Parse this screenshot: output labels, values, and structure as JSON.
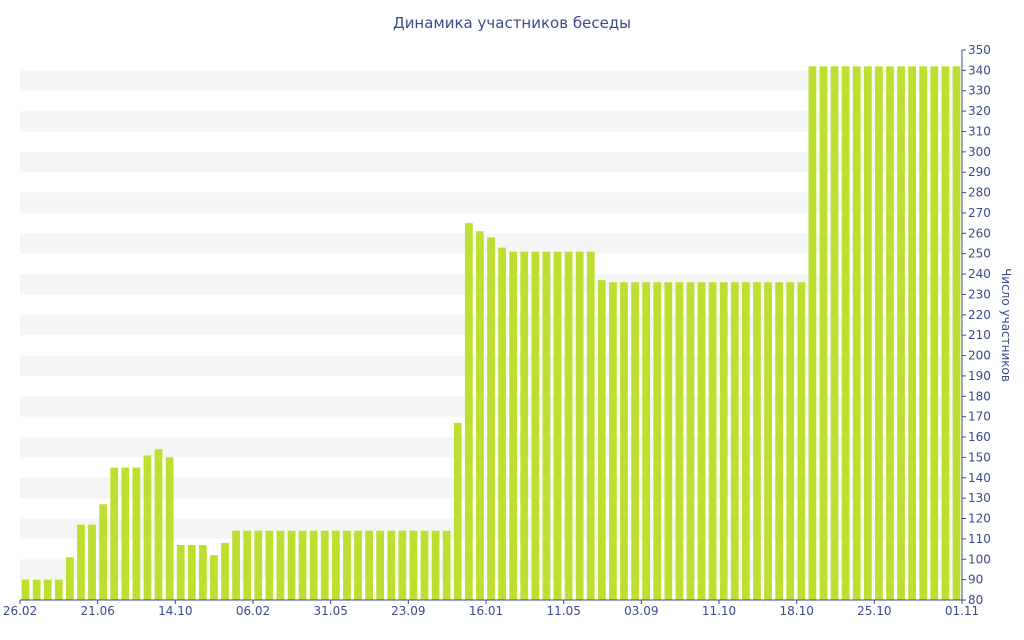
{
  "chart_data": {
    "type": "bar",
    "title": "Динамика участников беседы",
    "xlabel": "",
    "ylabel": "Число участников",
    "ylim": [
      80,
      350
    ],
    "y_ticks": [
      80,
      90,
      100,
      110,
      120,
      130,
      140,
      150,
      160,
      170,
      180,
      190,
      200,
      210,
      220,
      230,
      240,
      250,
      260,
      270,
      280,
      290,
      300,
      310,
      320,
      330,
      340,
      350
    ],
    "y_axis_position": "right",
    "grid": "alternating horizontal bands",
    "bar_color": "#bde030",
    "band_color": "#f5f5f5",
    "text_color": "#3b4a8c",
    "x_tick_labels": [
      "26.02",
      "21.06",
      "14.10",
      "06.02",
      "31.05",
      "23.09",
      "16.01",
      "11.05",
      "03.09",
      "11.10",
      "18.10",
      "25.10",
      "01.11"
    ],
    "values": [
      90,
      90,
      90,
      90,
      101,
      117,
      117,
      127,
      145,
      145,
      145,
      151,
      154,
      150,
      107,
      107,
      107,
      102,
      108,
      114,
      114,
      114,
      114,
      114,
      114,
      114,
      114,
      114,
      114,
      114,
      114,
      114,
      114,
      114,
      114,
      114,
      114,
      114,
      114,
      167,
      265,
      261,
      258,
      253,
      251,
      251,
      251,
      251,
      251,
      251,
      251,
      251,
      237,
      236,
      236,
      236,
      236,
      236,
      236,
      236,
      236,
      236,
      236,
      236,
      236,
      236,
      236,
      236,
      236,
      236,
      236,
      342,
      342,
      342,
      342,
      342,
      342,
      342,
      342,
      342,
      342,
      342,
      342,
      342,
      342
    ]
  }
}
